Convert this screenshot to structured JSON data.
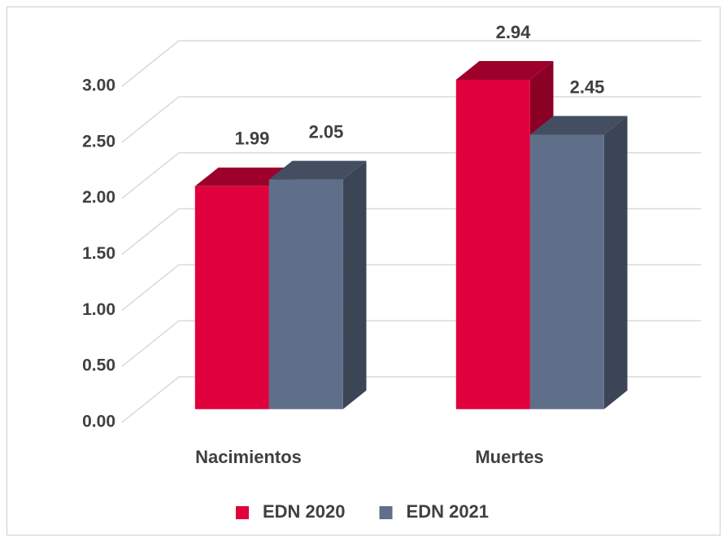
{
  "chart_data": {
    "type": "bar3d",
    "categories": [
      "Nacimientos",
      "Muertes"
    ],
    "series": [
      {
        "name": "EDN 2020",
        "color": "#e0003c",
        "values": [
          1.99,
          2.94
        ]
      },
      {
        "name": "EDN 2021",
        "color": "#5f6f8a",
        "values": [
          2.05,
          2.45
        ]
      }
    ],
    "ylim": [
      0,
      3
    ],
    "yticks": [
      {
        "value": 0,
        "label": "0.00"
      },
      {
        "value": 0.5,
        "label": "0.50"
      },
      {
        "value": 1,
        "label": "1.00"
      },
      {
        "value": 1.5,
        "label": "1.50"
      },
      {
        "value": 2,
        "label": "2.00"
      },
      {
        "value": 2.5,
        "label": "2.50"
      },
      {
        "value": 3,
        "label": "3.00"
      }
    ],
    "grid": true,
    "legend": "bottom"
  }
}
